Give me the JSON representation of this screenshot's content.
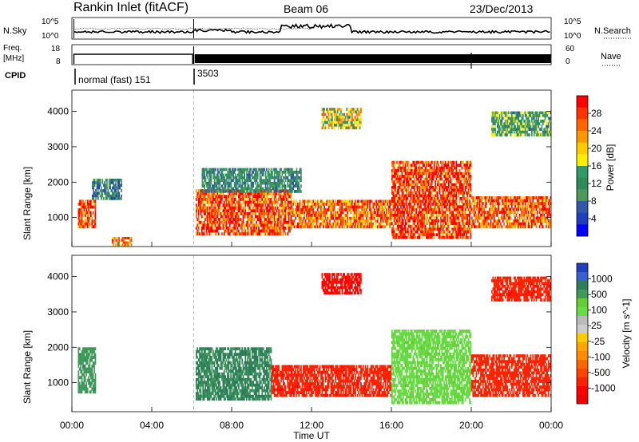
{
  "header": {
    "title": "Rankin Inlet (fitACF)",
    "beam": "Beam 06",
    "date": "23/Dec/2013"
  },
  "strips": {
    "nsky_label": "N.Sky",
    "nsky_ticks": [
      "10^5",
      "10^0"
    ],
    "nsearch_label": "N.Search",
    "nsearch_ticks": [
      "10^5",
      "10^0"
    ],
    "freq_label_line1": "Freq.",
    "freq_label_line2": "[MHz]",
    "freq_ticks": [
      "18",
      "8"
    ],
    "nave_label": "Nave",
    "nave_ticks": [
      "60",
      "0"
    ],
    "cpid_label": "CPID",
    "cpid_segments": [
      {
        "label": "normal (fast) 151",
        "start_hour": 0
      },
      {
        "label": "3503",
        "start_hour": 6.1
      }
    ]
  },
  "panels": {
    "power": {
      "ylabel": "Slant Range [km]",
      "colorbar_label": "Power [dB]",
      "colorbar_ticks": [
        "28",
        "24",
        "20",
        "16",
        "12",
        "8",
        "4"
      ],
      "colors": [
        "#ff0000",
        "#ff3300",
        "#ff6600",
        "#ff9900",
        "#ffcc00",
        "#ffee00",
        "#339966",
        "#2e8b57",
        "#4a9a5a",
        "#3355aa",
        "#1f3fbf",
        "#0000ff"
      ]
    },
    "velocity": {
      "ylabel": "Slant Range [km]",
      "colorbar_label": "Velocity [m s^-1]",
      "colorbar_ticks": [
        "1000",
        "500",
        "100",
        "25",
        "-25",
        "-100",
        "-500",
        "-1000"
      ],
      "colors": [
        "#1f3fbf",
        "#3a5fcf",
        "#2e7d5a",
        "#3f9a5a",
        "#66cc33",
        "#66dd44",
        "#bbbbbb",
        "#cccccc",
        "#ffcc00",
        "#ffa500",
        "#ff8c00",
        "#ff6600",
        "#ff4400",
        "#ff2200",
        "#ff0000",
        "#ee0000"
      ]
    }
  },
  "xaxis": {
    "label": "Time UT",
    "ticks": [
      "00:00",
      "04:00",
      "08:00",
      "12:00",
      "16:00",
      "20:00",
      "00:00"
    ]
  },
  "chart_data": {
    "type": "heatmap",
    "xlabel": "Time UT",
    "ylabel": "Slant Range [km]",
    "xlim_hours": [
      0,
      24
    ],
    "ylim_km": [
      180,
      4600
    ],
    "yticks_km": [
      1000,
      2000,
      3000,
      4000
    ],
    "xticks_hours": [
      0,
      4,
      8,
      12,
      16,
      20,
      24
    ],
    "power_colorbar": {
      "label": "Power [dB]",
      "range": [
        0,
        30
      ],
      "ticks": [
        28,
        24,
        20,
        16,
        12,
        8,
        4
      ]
    },
    "velocity_colorbar": {
      "label": "Velocity [m s^-1]",
      "ticks": [
        1000,
        500,
        100,
        25,
        -25,
        -100,
        -500,
        -1000
      ]
    },
    "power_echo_regions": [
      {
        "t0": 0.3,
        "t1": 1.2,
        "r0": 700,
        "r1": 1500,
        "level": 26
      },
      {
        "t0": 1.0,
        "t1": 2.5,
        "r0": 1500,
        "r1": 2100,
        "level": 8
      },
      {
        "t0": 2.0,
        "t1": 3.0,
        "r0": 200,
        "r1": 450,
        "level": 22
      },
      {
        "t0": 6.2,
        "t1": 11.0,
        "r0": 500,
        "r1": 1800,
        "level": 26
      },
      {
        "t0": 11.0,
        "t1": 16.0,
        "r0": 700,
        "r1": 1500,
        "level": 24
      },
      {
        "t0": 16.0,
        "t1": 20.0,
        "r0": 400,
        "r1": 2600,
        "level": 27
      },
      {
        "t0": 20.0,
        "t1": 24.0,
        "r0": 700,
        "r1": 1600,
        "level": 25
      },
      {
        "t0": 6.5,
        "t1": 11.5,
        "r0": 1700,
        "r1": 2400,
        "level": 10
      },
      {
        "t0": 12.5,
        "t1": 14.5,
        "r0": 3500,
        "r1": 4100,
        "level": 18
      },
      {
        "t0": 21.0,
        "t1": 24.0,
        "r0": 3300,
        "r1": 4000,
        "level": 12
      }
    ],
    "velocity_echo_regions": [
      {
        "t0": 0.3,
        "t1": 1.2,
        "r0": 700,
        "r1": 2000,
        "level": 60
      },
      {
        "t0": 6.2,
        "t1": 10.0,
        "r0": 500,
        "r1": 2000,
        "level": 80
      },
      {
        "t0": 10.0,
        "t1": 16.0,
        "r0": 600,
        "r1": 1500,
        "level": -150
      },
      {
        "t0": 16.0,
        "t1": 20.0,
        "r0": 400,
        "r1": 2500,
        "level": 10
      },
      {
        "t0": 20.0,
        "t1": 24.0,
        "r0": 600,
        "r1": 1800,
        "level": -120
      },
      {
        "t0": 12.5,
        "t1": 14.5,
        "r0": 3500,
        "r1": 4100,
        "level": -200
      },
      {
        "t0": 21.0,
        "t1": 24.0,
        "r0": 3300,
        "r1": 4000,
        "level": -150
      }
    ]
  }
}
